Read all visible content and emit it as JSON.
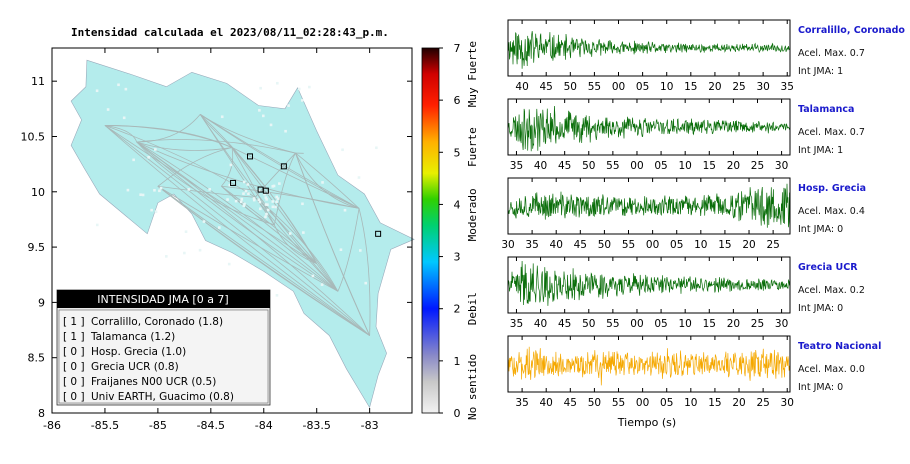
{
  "chart_data": [
    {
      "type": "map",
      "title": "Intensidad calculada el 2023/08/11_02:28:43_p.m.",
      "xlabel": "",
      "ylabel": "",
      "xlim": [
        -86,
        -82.6
      ],
      "ylim": [
        8,
        11.3
      ],
      "x_ticks": [
        -86,
        -85.5,
        -85,
        -84.5,
        -84,
        -83.5,
        -83
      ],
      "x_tick_labels": [
        "-86",
        "-85.5",
        "-85",
        "-84.5",
        "-84",
        "-83.5",
        "-83"
      ],
      "y_ticks": [
        8,
        8.5,
        9,
        9.5,
        10,
        10.5,
        11
      ],
      "y_tick_labels": [
        "8",
        "8.5",
        "9",
        "9.5",
        "10",
        "10.5",
        "11"
      ],
      "grid": false,
      "land_color": "#b4ecec",
      "station_markers": [
        {
          "lon": -84.13,
          "lat": 10.32
        },
        {
          "lon": -83.81,
          "lat": 10.23
        },
        {
          "lon": -84.29,
          "lat": 10.08
        },
        {
          "lon": -84.03,
          "lat": 10.02
        },
        {
          "lon": -83.98,
          "lat": 10.01
        },
        {
          "lon": -82.92,
          "lat": 9.62
        }
      ],
      "legend": {
        "title": "INTENSIDAD JMA [0 a 7]",
        "placement": "bottom-left",
        "entries": [
          {
            "code": "[ 1 ]",
            "label": "Corralillo, Coronado (1.8)"
          },
          {
            "code": "[ 1 ]",
            "label": "Talamanca (1.2)"
          },
          {
            "code": "[ 0 ]",
            "label": "Hosp. Grecia (1.0)"
          },
          {
            "code": "[ 0 ]",
            "label": "Grecia UCR (0.8)"
          },
          {
            "code": "[ 0 ]",
            "label": "Fraijanes N00 UCR (0.5)"
          },
          {
            "code": "[ 0 ]",
            "label": "Univ EARTH, Guacimo (0.8)"
          }
        ]
      }
    },
    {
      "type": "colorbar",
      "range": [
        0,
        7
      ],
      "ticks": [
        "0",
        "1",
        "2",
        "3",
        "4",
        "5",
        "6",
        "7"
      ],
      "category_labels": [
        {
          "label": "No sentido",
          "value": 0.5
        },
        {
          "label": "Debil",
          "value": 2.0
        },
        {
          "label": "Moderado",
          "value": 3.8
        },
        {
          "label": "Fuerte",
          "value": 5.1
        },
        {
          "label": "Muy Fuerte",
          "value": 6.5
        }
      ],
      "colors": [
        {
          "v": 0.0,
          "c": "#f2f2f2"
        },
        {
          "v": 0.6,
          "c": "#c8c8c8"
        },
        {
          "v": 1.1,
          "c": "#8a8ac8"
        },
        {
          "v": 2.0,
          "c": "#0018ff"
        },
        {
          "v": 2.9,
          "c": "#00c8ff"
        },
        {
          "v": 3.6,
          "c": "#00d070"
        },
        {
          "v": 4.1,
          "c": "#30d000"
        },
        {
          "v": 4.6,
          "c": "#e8f000"
        },
        {
          "v": 5.2,
          "c": "#ffb000"
        },
        {
          "v": 5.9,
          "c": "#ff2000"
        },
        {
          "v": 6.5,
          "c": "#d00000"
        },
        {
          "v": 7.0,
          "c": "#200000"
        }
      ]
    },
    {
      "type": "line",
      "xlabel": "Tiempo (s)",
      "panels": [
        {
          "station": "Corralillo, Coronado",
          "accel_label": "Acel. Max. 0.7",
          "intensity_label": "Int JMA: 1",
          "color": "#0a6e0a",
          "tick_labels": [
            "40",
            "45",
            "50",
            "55",
            "00",
            "05",
            "10",
            "15",
            "20",
            "25",
            "30",
            "35"
          ],
          "first_tick_offset": 0.05,
          "envelope": "decay",
          "seed": 11
        },
        {
          "station": "Talamanca",
          "accel_label": "Acel. Max. 0.7",
          "intensity_label": "Int JMA: 1",
          "color": "#0a6e0a",
          "tick_labels": [
            "35",
            "40",
            "45",
            "50",
            "55",
            "00",
            "05",
            "10",
            "15",
            "20",
            "25",
            "30"
          ],
          "first_tick_offset": 0.03,
          "envelope": "decay_mid",
          "seed": 23
        },
        {
          "station": "Hosp. Grecia",
          "accel_label": "Acel. Max. 0.4",
          "intensity_label": "Int JMA: 0",
          "color": "#0a6e0a",
          "tick_labels": [
            "30",
            "35",
            "40",
            "45",
            "50",
            "55",
            "00",
            "05",
            "10",
            "15",
            "20",
            "25"
          ],
          "first_tick_offset": 0.0,
          "envelope": "grow_end",
          "seed": 37
        },
        {
          "station": "Grecia UCR",
          "accel_label": "Acel. Max. 0.2",
          "intensity_label": "Int JMA: 0",
          "color": "#0a6e0a",
          "tick_labels": [
            "35",
            "40",
            "45",
            "50",
            "55",
            "00",
            "05",
            "10",
            "15",
            "20",
            "25",
            "30"
          ],
          "first_tick_offset": 0.03,
          "envelope": "decay_mid",
          "seed": 41
        },
        {
          "station": "Teatro Nacional",
          "accel_label": "Acel. Max. 0.0",
          "intensity_label": "Int JMA: 0",
          "color": "#f5a800",
          "tick_labels": [
            "35",
            "40",
            "45",
            "50",
            "55",
            "00",
            "05",
            "10",
            "15",
            "20",
            "25",
            "30"
          ],
          "first_tick_offset": 0.05,
          "envelope": "flat",
          "seed": 53
        }
      ]
    }
  ]
}
